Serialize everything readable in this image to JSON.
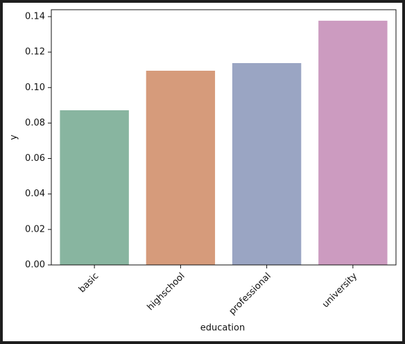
{
  "chart_data": {
    "type": "bar",
    "x_label": "education",
    "y_label": "y",
    "categories": [
      "basic",
      "highschool",
      "professional",
      "university"
    ],
    "values": [
      0.0872,
      0.1095,
      0.1138,
      0.1377
    ],
    "colors": [
      "#88b5a0",
      "#d69b7b",
      "#9aa5c3",
      "#cc9bc0"
    ],
    "ylim": [
      0,
      0.1439
    ],
    "yticks": [
      {
        "value": 0,
        "label": "0.00"
      },
      {
        "value": 0.02,
        "label": "0.02"
      },
      {
        "value": 0.04,
        "label": "0.04"
      },
      {
        "value": 0.06,
        "label": "0.06"
      },
      {
        "value": 0.08,
        "label": "0.08"
      },
      {
        "value": 0.1,
        "label": "0.10"
      },
      {
        "value": 0.12,
        "label": "0.12"
      },
      {
        "value": 0.14,
        "label": "0.14"
      }
    ],
    "grid": false
  }
}
